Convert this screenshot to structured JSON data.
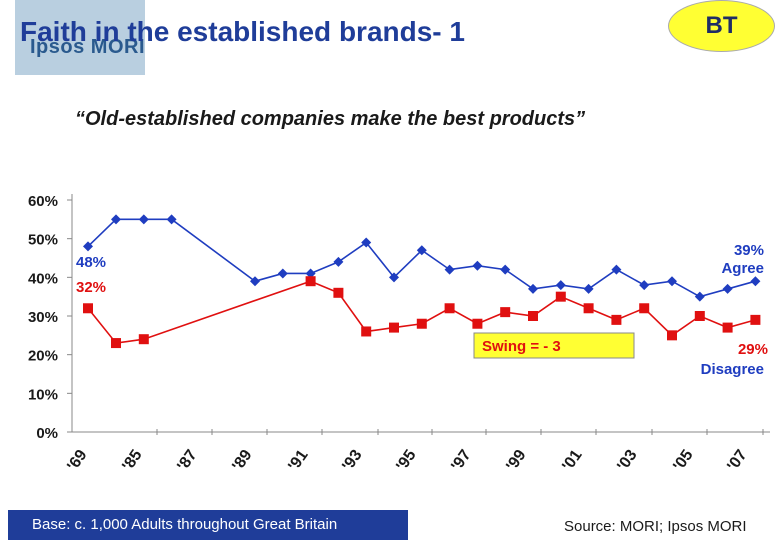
{
  "header": {
    "title": "Faith in the established brands- 1",
    "logo_text": "Ipsos MORI",
    "brand_badge": "BT"
  },
  "chart_data": {
    "type": "line",
    "title": "“Old-established companies make the best products”",
    "y_ticks": [
      "0%",
      "10%",
      "20%",
      "30%",
      "40%",
      "50%",
      "60%"
    ],
    "x_ticks": [
      "'69",
      "'85",
      "'87",
      "'89",
      "'91",
      "'93",
      "'95",
      "'97",
      "'99",
      "'01",
      "'03",
      "'05",
      "'07"
    ],
    "ylim": [
      0,
      60
    ],
    "series": [
      {
        "name": "Agree",
        "color": "#1f3dc0",
        "marker": "diamond",
        "x": [
          1969,
          1984,
          1985,
          1986,
          1989,
          1990,
          1991,
          1992,
          1993,
          1994,
          1995,
          1996,
          1997,
          1998,
          1999,
          2000,
          2001,
          2002,
          2003,
          2004,
          2005,
          2006,
          2007
        ],
        "values": [
          48,
          55,
          55,
          55,
          39,
          41,
          41,
          44,
          49,
          40,
          47,
          42,
          43,
          42,
          37,
          38,
          37,
          42,
          38,
          39,
          35,
          37,
          39
        ]
      },
      {
        "name": "Disagree",
        "color": "#e01010",
        "marker": "square",
        "x": [
          1969,
          1984,
          1985,
          1991,
          1992,
          1993,
          1994,
          1995,
          1996,
          1997,
          1998,
          1999,
          2000,
          2001,
          2002,
          2003,
          2004,
          2005,
          2006,
          2007
        ],
        "values": [
          32,
          23,
          24,
          39,
          36,
          26,
          27,
          28,
          32,
          28,
          31,
          30,
          35,
          32,
          29,
          32,
          25,
          30,
          27,
          29
        ]
      }
    ],
    "annotations": {
      "start_agree": "48%",
      "start_disagree": "32%",
      "end_agree_value": "39%",
      "end_agree_label": "Agree",
      "end_disagree_value": "29%",
      "end_disagree_label": "Disagree",
      "swing": "Swing = - 3"
    },
    "colors": {
      "agree": "#1f3dc0",
      "disagree": "#e01010",
      "swing_box": "#ffff33"
    }
  },
  "footer": {
    "base": "Base:  c. 1,000 Adults throughout Great Britain",
    "source": "Source: MORI; Ipsos MORI"
  }
}
